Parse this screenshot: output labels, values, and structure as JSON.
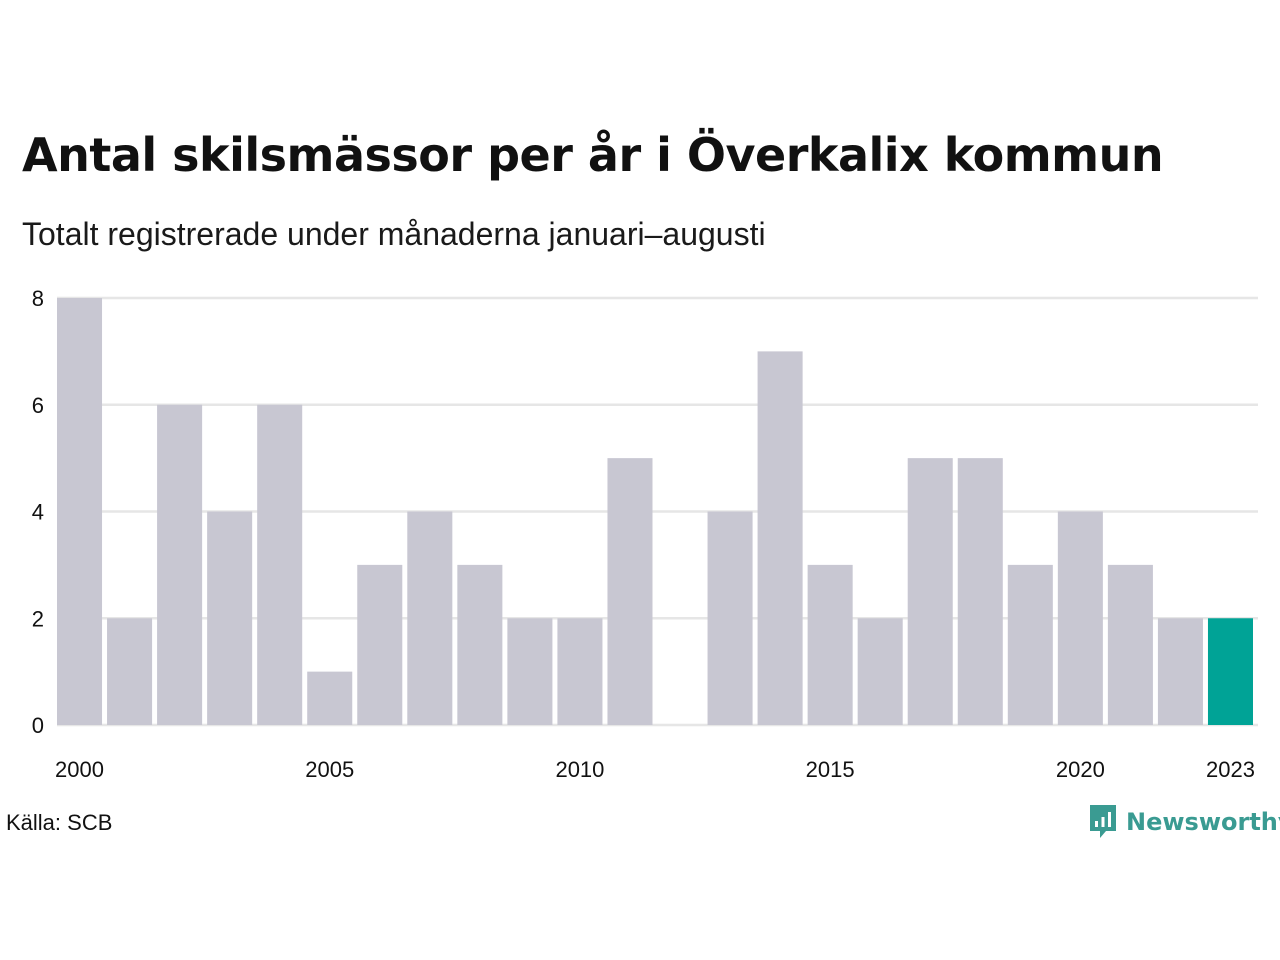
{
  "header": {
    "title": "Antal skilsmässor per år i Överkalix kommun",
    "subtitle": "Totalt registrerade under månaderna januari–augusti"
  },
  "footer": {
    "source": "Källa: SCB",
    "brand": "Newsworthy"
  },
  "colors": {
    "bar": "#c8c7d2",
    "highlight": "#00a396",
    "grid": "#e6e6e6",
    "brand": "#3a9b92"
  },
  "chart_data": {
    "type": "bar",
    "categories": [
      "2000",
      "2001",
      "2002",
      "2003",
      "2004",
      "2005",
      "2006",
      "2007",
      "2008",
      "2009",
      "2010",
      "2011",
      "2012",
      "2013",
      "2014",
      "2015",
      "2016",
      "2017",
      "2018",
      "2019",
      "2020",
      "2021",
      "2022",
      "2023"
    ],
    "values": [
      8,
      2,
      6,
      4,
      6,
      1,
      3,
      4,
      3,
      2,
      2,
      5,
      0,
      4,
      7,
      3,
      2,
      5,
      5,
      3,
      4,
      3,
      2,
      2
    ],
    "highlight_category": "2023",
    "x_tick_labels": [
      "2000",
      "2005",
      "2010",
      "2015",
      "2020",
      "2023"
    ],
    "y_ticks": [
      0,
      2,
      4,
      6,
      8
    ],
    "ylim": [
      0,
      8
    ],
    "grid": true
  }
}
